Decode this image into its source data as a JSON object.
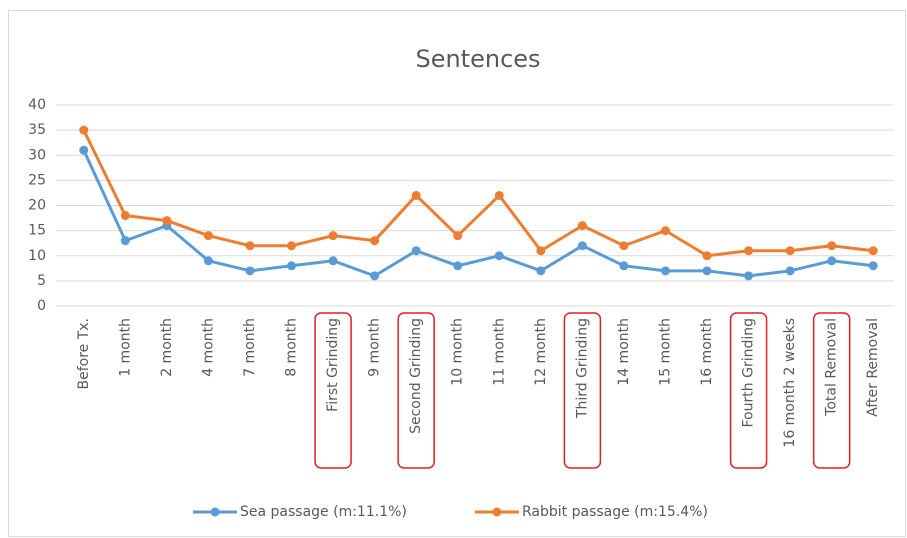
{
  "chart_data": {
    "type": "line",
    "title": "Sentences",
    "categories": [
      "Before Tx.",
      "1 month",
      "2 month",
      "4 month",
      "7 month",
      "8 month",
      "First Grinding",
      "9 month",
      "Second Grinding",
      "10 month",
      "11 month",
      "12 month",
      "Third Grinding",
      "14 month",
      "15 month",
      "16 month",
      "Fourth Grinding",
      "16 month 2 weeks",
      "Total Removal",
      "After Removal"
    ],
    "series": [
      {
        "name": "Sea passage (m:11.1%)",
        "color": "#5b9bd5",
        "values": [
          31,
          13,
          16,
          9,
          7,
          8,
          9,
          6,
          11,
          8,
          10,
          7,
          12,
          8,
          7,
          7,
          6,
          7,
          9,
          8
        ]
      },
      {
        "name": "Rabbit passage (m:15.4%)",
        "color": "#ed7d31",
        "values": [
          35,
          18,
          17,
          14,
          12,
          12,
          14,
          13,
          22,
          14,
          22,
          11,
          16,
          12,
          15,
          10,
          11,
          11,
          12,
          11
        ]
      }
    ],
    "ylim": [
      0,
      40
    ],
    "yticks": [
      0,
      5,
      10,
      15,
      20,
      25,
      30,
      35,
      40
    ],
    "grid": true,
    "legend": "bottom",
    "highlighted_categories": [
      6,
      8,
      12,
      16,
      18
    ],
    "highlight_color": "#e02020"
  }
}
